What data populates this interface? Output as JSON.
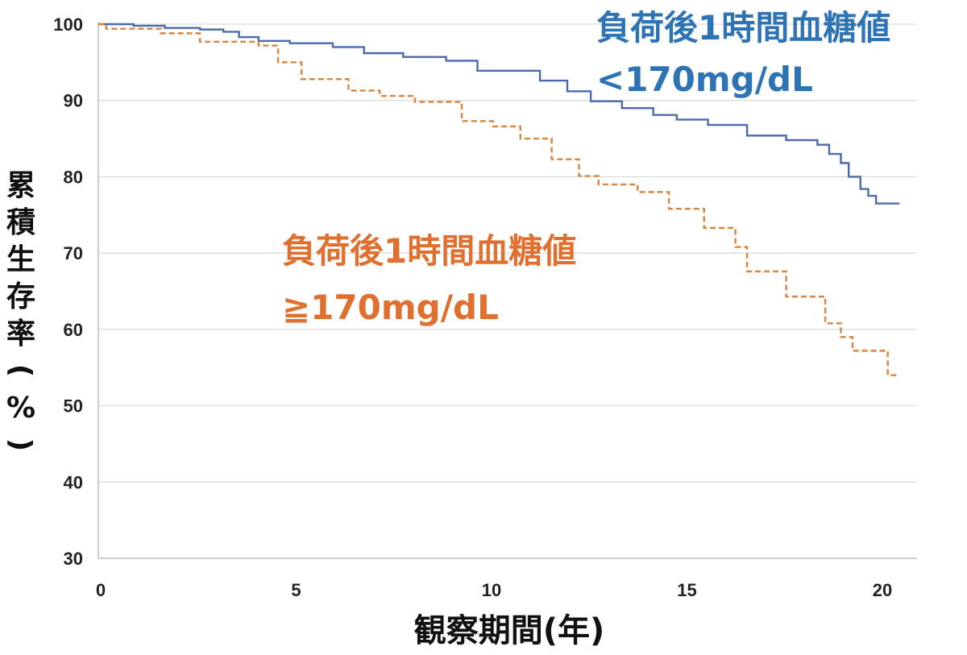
{
  "chart_data": {
    "type": "line",
    "xlabel": "観察期間(年)",
    "ylabel": "累積生存率(%)",
    "xlim": [
      0,
      21
    ],
    "ylim": [
      30,
      100
    ],
    "xticks": [
      "0",
      "5",
      "10",
      "15",
      "20"
    ],
    "yticks": [
      "30",
      "40",
      "50",
      "60",
      "70",
      "80",
      "90",
      "100"
    ],
    "grid": "horizontal",
    "step": true,
    "series": [
      {
        "name_lines": [
          "負荷後1時間血糖値",
          "<170mg/dL"
        ],
        "color": "#4a6aab",
        "label_color": "#2e74b5",
        "style": "solid",
        "x": [
          0,
          0.9,
          1.7,
          2.6,
          3.2,
          3.6,
          4.1,
          4.9,
          6.0,
          6.8,
          7.8,
          8.9,
          9.7,
          11.3,
          12.0,
          12.6,
          13.4,
          14.2,
          14.8,
          15.6,
          16.6,
          17.6,
          18.4,
          18.7,
          19.0,
          19.2,
          19.5,
          19.7,
          19.9,
          20.2,
          20.5
        ],
        "y": [
          100,
          99.8,
          99.5,
          99.3,
          99.0,
          98.3,
          97.8,
          97.5,
          97.0,
          96.2,
          95.7,
          95.2,
          93.9,
          92.6,
          91.2,
          89.9,
          89.0,
          88.1,
          87.5,
          86.8,
          85.4,
          84.8,
          84.2,
          83.0,
          81.8,
          80.0,
          78.4,
          77.5,
          76.5,
          76.5,
          76.5
        ],
        "show_point_labels": false
      },
      {
        "name_lines": [
          "負荷後1時間血糖値",
          "≧170mg/dL"
        ],
        "color": "#d68640",
        "label_color": "#e07030",
        "style": "dashed",
        "x": [
          0,
          0.2,
          1.6,
          2.6,
          4.1,
          4.6,
          5.2,
          6.4,
          7.2,
          8.1,
          9.3,
          10.1,
          10.8,
          11.6,
          12.3,
          12.8,
          13.8,
          14.6,
          15.5,
          16.3,
          16.6,
          17.6,
          18.6,
          19.0,
          19.3,
          20.2,
          20.5
        ],
        "y": [
          100,
          99.4,
          98.8,
          97.7,
          97.2,
          95.0,
          92.8,
          91.3,
          90.6,
          89.8,
          87.3,
          86.6,
          85.0,
          82.3,
          80.1,
          79.0,
          78.0,
          75.8,
          73.3,
          70.8,
          67.6,
          64.3,
          60.8,
          59.0,
          57.2,
          54.0,
          54.0
        ],
        "show_point_labels": false
      }
    ]
  }
}
